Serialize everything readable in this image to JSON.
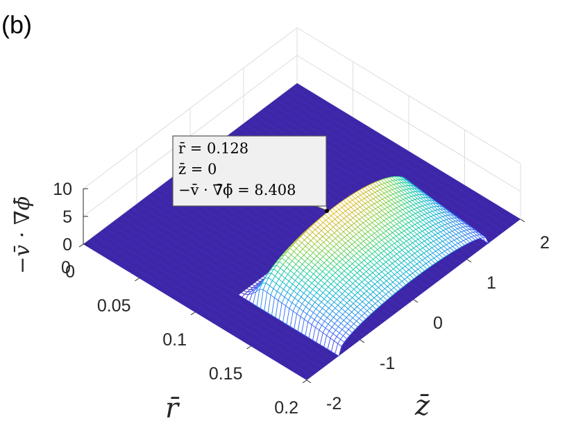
{
  "panel_label": "(b)",
  "chart_data": {
    "type": "surface",
    "title": "",
    "xlabel": "r̄",
    "ylabel": "z̄",
    "zlabel": "−v̄ · ∇̄ϕ̄",
    "xlim": [
      0,
      0.2
    ],
    "ylim": [
      -2,
      2
    ],
    "zlim": [
      0,
      10
    ],
    "x_ticks": [
      "0",
      "0.05",
      "0.1",
      "0.15",
      "0.2"
    ],
    "y_ticks": [
      "-2",
      "-1",
      "0",
      "1",
      "2"
    ],
    "z_ticks": [
      "0",
      "5",
      "10"
    ],
    "x_tick_values": [
      0,
      0.05,
      0.1,
      0.15,
      0.2
    ],
    "y_tick_values": [
      -2,
      -1,
      0,
      1,
      2
    ],
    "z_tick_values": [
      0,
      5,
      10
    ],
    "grid": true,
    "colormap": "parula",
    "baseline_color": "#3e26a8",
    "peak_color": "#f9fb0e",
    "ridges": [
      {
        "r_start": 0.11,
        "r_peak": 0.128,
        "r_end": 0.2,
        "z_center": 0,
        "z_halfwidth": 1.4,
        "peak": 8.408
      }
    ],
    "datatip": {
      "lines": [
        "r̄ = 0.128",
        "z̄ = 0",
        "−v̄ · ∇̄ϕ̄ = 8.408"
      ],
      "r": 0.128,
      "z": 0,
      "value": 8.408
    }
  }
}
